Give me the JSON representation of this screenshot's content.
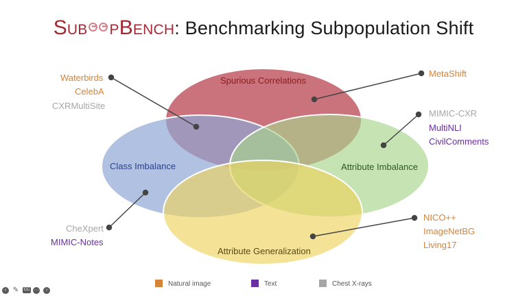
{
  "title": {
    "brand_s": "S",
    "brand_ub": "UB",
    "brand_p": "P",
    "brand_b": "B",
    "brand_ench": "ENCH",
    "rest": ": Benchmarking Subpopulation Shift"
  },
  "categories": {
    "spurious": "Spurious Correlations",
    "class": "Class Imbalance",
    "attr_imb": "Attribute Imbalance",
    "attr_gen": "Attribute Generalization"
  },
  "datasets": {
    "waterbirds": "Waterbirds",
    "celeba": "CelebA",
    "cxrmultisite": "CXRMultiSite",
    "metashift": "MetaShift",
    "mimic_cxr": "MIMIC-CXR",
    "multinli": "MultiNLI",
    "civilcomments": "CivilComments",
    "chexpert": "CheXpert",
    "mimic_notes": "MIMIC-Notes",
    "nico": "NICO++",
    "imagenetbg": "ImageNetBG",
    "living17": "Living17"
  },
  "legend": {
    "natural": "Natural image",
    "text": "Text",
    "xray": "Chest X-rays"
  },
  "colors": {
    "spurious": "#c0545f",
    "class": "#8fa7d6",
    "attr_imb": "#a7d48c",
    "attr_gen": "#eed45e",
    "natural": "#d5843a",
    "text": "#6a2fa0",
    "xray": "#a6a6a6",
    "brand": "#a32a35"
  }
}
